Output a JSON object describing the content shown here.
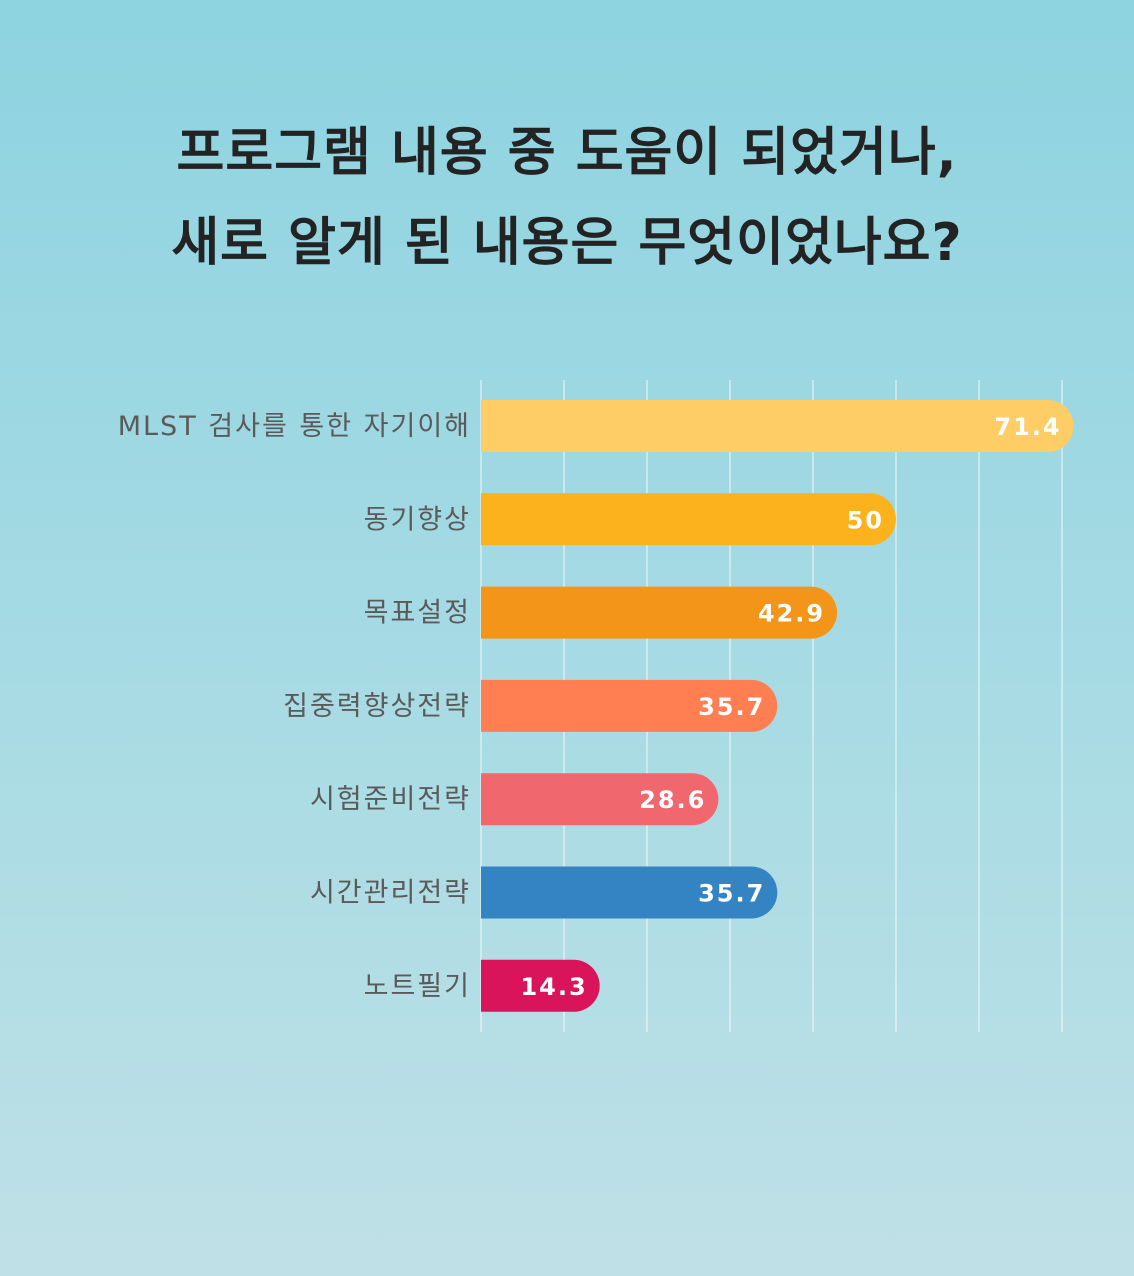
{
  "title_lines": [
    "프로그램 내용 중 도움이 되었거나,",
    "새로 알게 된 내용은 무엇이었나요?"
  ],
  "chart_data": {
    "type": "bar",
    "orientation": "horizontal",
    "title": "프로그램 내용 중 도움이 되었거나, 새로 알게 된 내용은 무엇이었나요?",
    "categories": [
      "MLST 검사를 통한 자기이해",
      "동기향상",
      "목표설정",
      "집중력향상전략",
      "시험준비전략",
      "시간관리전략",
      "노트필기"
    ],
    "values": [
      71.4,
      50,
      42.9,
      35.7,
      28.6,
      35.7,
      14.3
    ],
    "value_labels": [
      "71.4",
      "50",
      "42.9",
      "35.7",
      "28.6",
      "35.7",
      "14.3"
    ],
    "colors": [
      "#fecd65",
      "#fbb21c",
      "#f39518",
      "#ff7f52",
      "#f0686d",
      "#3484c4",
      "#d9145a"
    ],
    "xlim": [
      0,
      70
    ],
    "grid": true,
    "legend": "none"
  }
}
